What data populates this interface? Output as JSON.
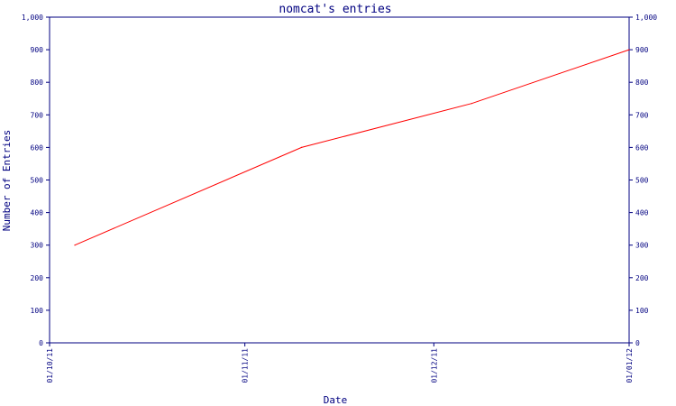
{
  "chart_data": {
    "type": "line",
    "title": "nomcat's entries",
    "xlabel": "Date",
    "ylabel": "Number of Entries",
    "x_ticks": [
      "01/10/11",
      "01/11/11",
      "01/12/11",
      "01/01/12"
    ],
    "y_ticks": [
      "0",
      "100",
      "200",
      "300",
      "400",
      "500",
      "600",
      "700",
      "800",
      "900",
      "1,000"
    ],
    "ylim": [
      0,
      1000
    ],
    "xlim": [
      "2011-10-01",
      "2012-01-01"
    ],
    "grid": false,
    "right_axis": true,
    "series": [
      {
        "color": "#ff0000",
        "points": [
          {
            "x": "2011-10-05",
            "y": 300
          },
          {
            "x": "2011-11-10",
            "y": 600
          },
          {
            "x": "2011-12-07",
            "y": 735
          },
          {
            "x": "2012-01-01",
            "y": 900
          }
        ]
      }
    ]
  },
  "colors": {
    "axis": "#000080",
    "line": "#ff0000",
    "background": "#ffffff"
  }
}
